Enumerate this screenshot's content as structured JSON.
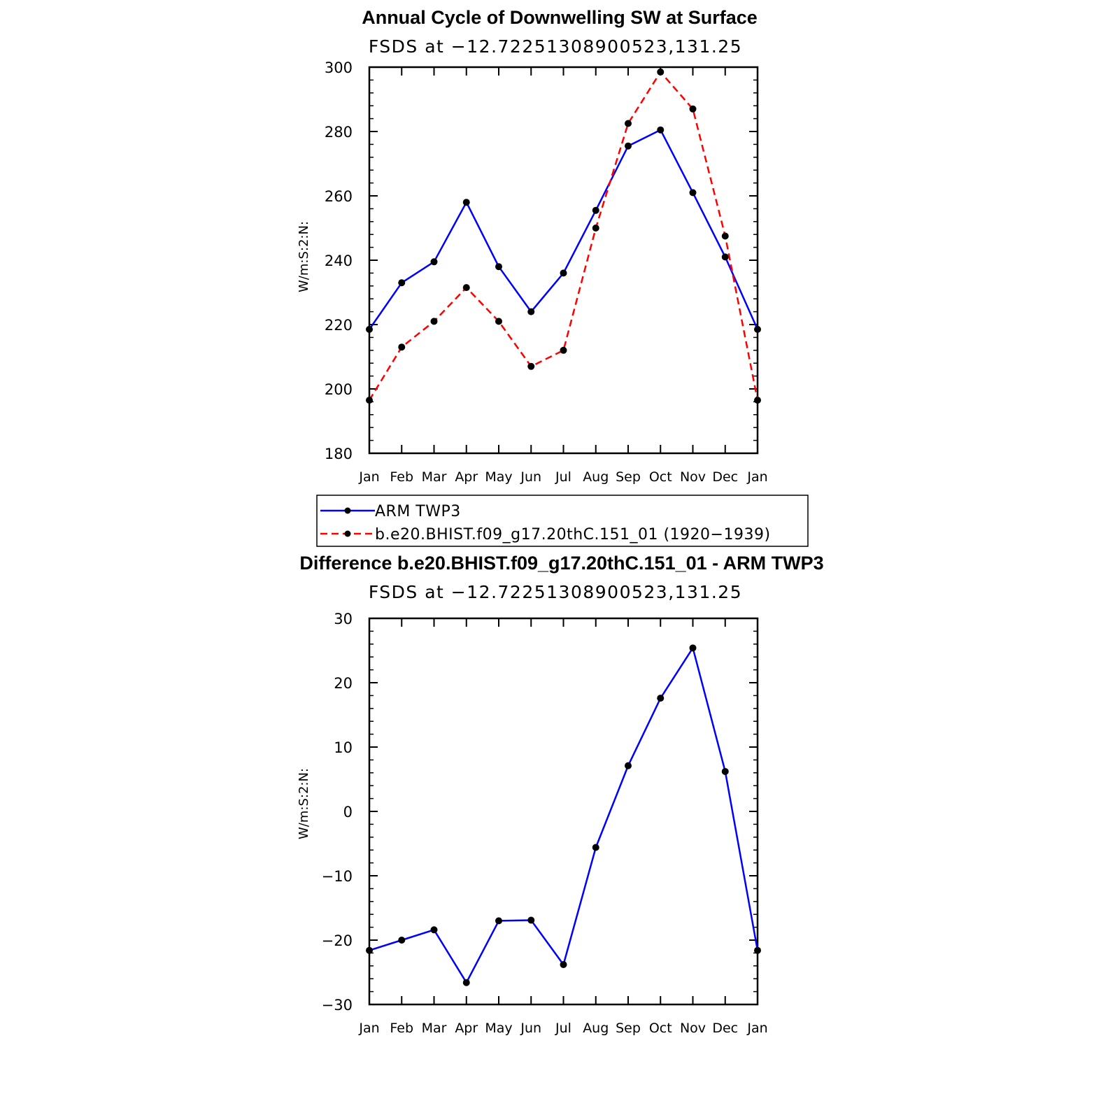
{
  "chart_data": [
    {
      "type": "line",
      "title": "Annual Cycle of Downwelling SW at Surface",
      "subtitle": "FSDS at −12.72251308900523,131.25",
      "ylabel": "W/m:S:2:N:",
      "xlabel": "",
      "categories": [
        "Jan",
        "Feb",
        "Mar",
        "Apr",
        "May",
        "Jun",
        "Jul",
        "Aug",
        "Sep",
        "Oct",
        "Nov",
        "Dec",
        "Jan"
      ],
      "ylim": [
        180,
        300
      ],
      "yticks": [
        "180",
        "200",
        "220",
        "240",
        "260",
        "280",
        "300"
      ],
      "grid": false,
      "legend_position": "bottom",
      "series": [
        {
          "name": "ARM TWP3",
          "color": "#0000ff",
          "style": "solid",
          "values": [
            218.5,
            233,
            239.5,
            258,
            238,
            224,
            236,
            255.5,
            275.5,
            280.5,
            261,
            241,
            218.5
          ]
        },
        {
          "name": "b.e20.BHIST.f09_g17.20thC.151_01 (1920−1939)",
          "color": "#ff0000",
          "style": "dashed",
          "values": [
            196.5,
            213,
            221,
            231.5,
            221,
            207,
            212,
            250,
            282.5,
            298.5,
            287,
            247.5,
            196.5
          ]
        }
      ]
    },
    {
      "type": "line",
      "title": "Difference b.e20.BHIST.f09_g17.20thC.151_01 - ARM TWP3",
      "subtitle": "FSDS at −12.72251308900523,131.25",
      "ylabel": "W/m:S:2:N:",
      "xlabel": "",
      "categories": [
        "Jan",
        "Feb",
        "Mar",
        "Apr",
        "May",
        "Jun",
        "Jul",
        "Aug",
        "Sep",
        "Oct",
        "Nov",
        "Dec",
        "Jan"
      ],
      "ylim": [
        -30,
        30
      ],
      "yticks": [
        "−30",
        "−20",
        "−10",
        "0",
        "10",
        "20",
        "30"
      ],
      "grid": false,
      "series": [
        {
          "color": "#0000ff",
          "style": "solid",
          "values": [
            -21.6,
            -20,
            -18.4,
            -26.6,
            -17,
            -16.9,
            -23.8,
            -5.6,
            7.1,
            17.6,
            25.4,
            6.2,
            -21.6
          ]
        }
      ]
    }
  ]
}
